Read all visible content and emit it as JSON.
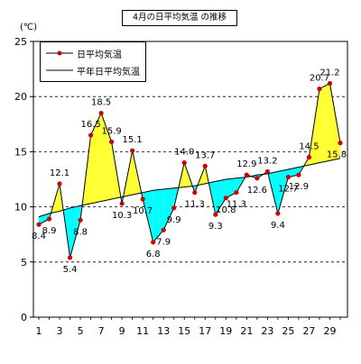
{
  "chart_data": {
    "type": "line",
    "title": "4月の日平均気温 の推移",
    "ylabel": "(℃)",
    "xlabel": "",
    "ylim": [
      0,
      25
    ],
    "y_ticks": [
      0,
      5,
      10,
      15,
      20,
      25
    ],
    "x_ticks": [
      1,
      3,
      5,
      7,
      9,
      11,
      13,
      15,
      17,
      19,
      21,
      23,
      25,
      27,
      29
    ],
    "x": [
      1,
      2,
      3,
      4,
      5,
      6,
      7,
      8,
      9,
      10,
      11,
      12,
      13,
      14,
      15,
      16,
      17,
      18,
      19,
      20,
      21,
      22,
      23,
      24,
      25,
      26,
      27,
      28,
      29,
      30
    ],
    "grid": "horizontal dashed",
    "legend_position": "top-left",
    "series": [
      {
        "name": "日平均気温",
        "color": "#cc0000",
        "values": [
          8.4,
          8.9,
          12.1,
          5.4,
          8.8,
          16.5,
          18.5,
          15.9,
          10.3,
          15.1,
          10.7,
          6.8,
          7.9,
          9.9,
          14.0,
          11.3,
          13.7,
          9.3,
          10.8,
          11.3,
          12.9,
          12.6,
          13.2,
          9.4,
          12.7,
          12.9,
          14.5,
          20.7,
          21.2,
          15.8
        ]
      },
      {
        "name": "平年日平均気温",
        "color": "#000000",
        "values": [
          9.1,
          9.4,
          9.6,
          9.9,
          10.1,
          10.3,
          10.5,
          10.7,
          10.9,
          11.1,
          11.3,
          11.5,
          11.6,
          11.7,
          11.8,
          11.9,
          12.1,
          12.3,
          12.5,
          12.6,
          12.7,
          12.9,
          13.0,
          13.2,
          13.4,
          13.6,
          13.8,
          14.0,
          14.2,
          14.4
        ]
      }
    ],
    "point_labels": [
      {
        "day": 1,
        "text": "8.4"
      },
      {
        "day": 2,
        "text": "8.9"
      },
      {
        "day": 3,
        "text": "12.1"
      },
      {
        "day": 4,
        "text": "5.4"
      },
      {
        "day": 5,
        "text": "8.8"
      },
      {
        "day": 6,
        "text": "16.5"
      },
      {
        "day": 7,
        "text": "18.5"
      },
      {
        "day": 8,
        "text": "15.9"
      },
      {
        "day": 9,
        "text": "10.3"
      },
      {
        "day": 10,
        "text": "15.1"
      },
      {
        "day": 11,
        "text": "10.7"
      },
      {
        "day": 12,
        "text": "6.8"
      },
      {
        "day": 13,
        "text": "7.9"
      },
      {
        "day": 14,
        "text": "9.9"
      },
      {
        "day": 15,
        "text": "14.0"
      },
      {
        "day": 16,
        "text": "11.3"
      },
      {
        "day": 17,
        "text": "13.7"
      },
      {
        "day": 18,
        "text": "9.3"
      },
      {
        "day": 19,
        "text": "10.8"
      },
      {
        "day": 20,
        "text": "11.3"
      },
      {
        "day": 21,
        "text": "12.9"
      },
      {
        "day": 22,
        "text": "12.6"
      },
      {
        "day": 23,
        "text": "13.2"
      },
      {
        "day": 24,
        "text": "9.4"
      },
      {
        "day": 25,
        "text": "12.7"
      },
      {
        "day": 26,
        "text": "12.9"
      },
      {
        "day": 27,
        "text": "14.5"
      },
      {
        "day": 28,
        "text": "20.7"
      },
      {
        "day": 29,
        "text": "21.2"
      },
      {
        "day": 30,
        "text": "15.8"
      }
    ],
    "fill_above_color": "#ffff33",
    "fill_below_color": "#00ffff"
  }
}
